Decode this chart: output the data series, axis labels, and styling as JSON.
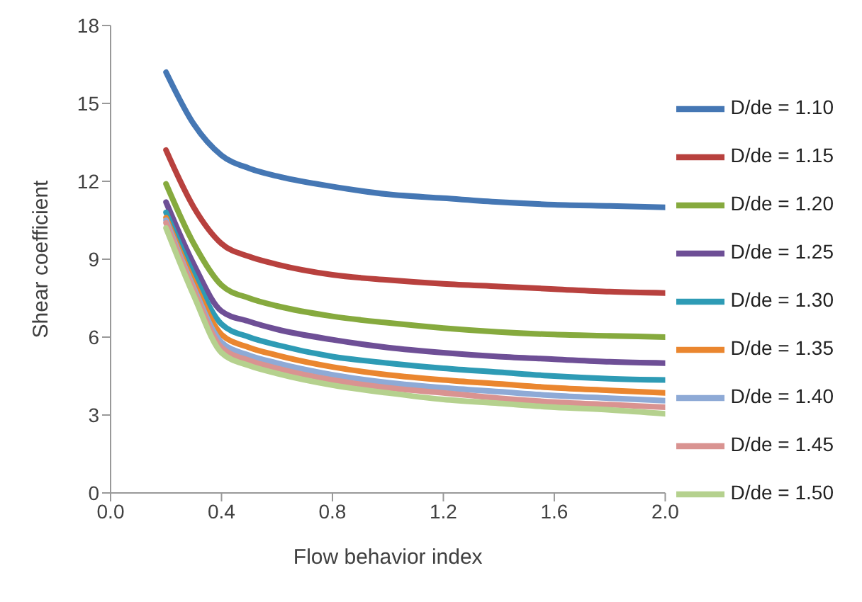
{
  "chart_data": {
    "type": "line",
    "xlabel": "Flow behavior index",
    "ylabel": "Shear coefficient",
    "x": [
      0.2,
      0.3,
      0.4,
      0.5,
      0.6,
      0.8,
      1.0,
      1.2,
      1.4,
      1.6,
      1.8,
      2.0
    ],
    "xlim": [
      0,
      2
    ],
    "xticks": [
      {
        "value": 0,
        "label": "0.0"
      },
      {
        "value": 0.4,
        "label": "0.4"
      },
      {
        "value": 0.8,
        "label": "0.8"
      },
      {
        "value": 1.2,
        "label": "1.2"
      },
      {
        "value": 1.6,
        "label": "1.6"
      },
      {
        "value": 2,
        "label": "2.0"
      }
    ],
    "ylim": [
      0,
      18
    ],
    "yticks": [
      0,
      3,
      6,
      9,
      12,
      15,
      18
    ],
    "grid": false,
    "legend": "right",
    "marker": "none",
    "line_style": "solid",
    "series": [
      {
        "name": "D/de = 1.10",
        "color": "#4577b4",
        "values": [
          16.2,
          14.2,
          13.0,
          12.5,
          12.2,
          11.8,
          11.5,
          11.35,
          11.2,
          11.1,
          11.05,
          11.0
        ]
      },
      {
        "name": "D/de = 1.15",
        "color": "#b8413e",
        "values": [
          13.2,
          11.0,
          9.6,
          9.1,
          8.8,
          8.4,
          8.2,
          8.05,
          7.95,
          7.85,
          7.75,
          7.7
        ]
      },
      {
        "name": "D/de = 1.20",
        "color": "#86aa3e",
        "values": [
          11.9,
          9.6,
          8.0,
          7.5,
          7.2,
          6.8,
          6.55,
          6.35,
          6.2,
          6.1,
          6.05,
          6.0
        ]
      },
      {
        "name": "D/de = 1.25",
        "color": "#6e4f96",
        "values": [
          11.2,
          8.8,
          7.0,
          6.6,
          6.3,
          5.9,
          5.6,
          5.4,
          5.25,
          5.15,
          5.05,
          5.0
        ]
      },
      {
        "name": "D/de = 1.30",
        "color": "#2e9bb5",
        "values": [
          10.8,
          8.4,
          6.5,
          6.0,
          5.7,
          5.25,
          5.0,
          4.8,
          4.65,
          4.5,
          4.4,
          4.35
        ]
      },
      {
        "name": "D/de = 1.35",
        "color": "#ea862f",
        "values": [
          10.6,
          8.1,
          6.1,
          5.6,
          5.3,
          4.85,
          4.55,
          4.35,
          4.2,
          4.05,
          3.95,
          3.85
        ]
      },
      {
        "name": "D/de = 1.40",
        "color": "#8eaad6",
        "values": [
          10.5,
          7.9,
          5.8,
          5.3,
          5.0,
          4.55,
          4.25,
          4.05,
          3.9,
          3.75,
          3.65,
          3.55
        ]
      },
      {
        "name": "D/de = 1.45",
        "color": "#d99391",
        "values": [
          10.4,
          7.8,
          5.6,
          5.1,
          4.8,
          4.35,
          4.05,
          3.85,
          3.65,
          3.5,
          3.4,
          3.3
        ]
      },
      {
        "name": "D/de = 1.50",
        "color": "#b5d18e",
        "values": [
          10.2,
          7.6,
          5.4,
          4.9,
          4.6,
          4.15,
          3.85,
          3.6,
          3.45,
          3.3,
          3.2,
          3.05
        ]
      }
    ]
  }
}
